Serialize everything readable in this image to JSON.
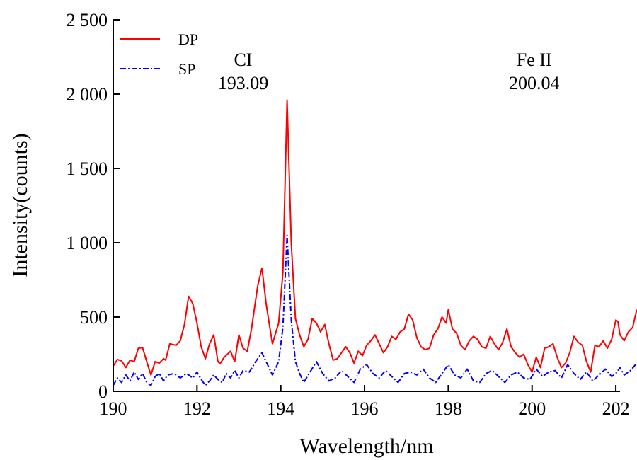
{
  "chart_data": {
    "type": "line",
    "xlabel": "Wavelength/nm",
    "ylabel": "Intensity(counts)",
    "xlim": [
      190,
      202.1
    ],
    "ylim": [
      0,
      2500
    ],
    "xticks": [
      {
        "value": 190,
        "label": "190"
      },
      {
        "value": 192,
        "label": "192"
      },
      {
        "value": 194,
        "label": "194"
      },
      {
        "value": 196,
        "label": "196"
      },
      {
        "value": 198,
        "label": "198"
      },
      {
        "value": 200,
        "label": "200"
      },
      {
        "value": 202,
        "label": "202"
      }
    ],
    "yticks": [
      {
        "value": 0,
        "label": "0"
      },
      {
        "value": 500,
        "label": "500"
      },
      {
        "value": 1000,
        "label": "1 000"
      },
      {
        "value": 1500,
        "label": "1 500"
      },
      {
        "value": 2000,
        "label": "2 000"
      },
      {
        "value": 2500,
        "label": "2 500"
      }
    ],
    "grid": false,
    "legend_position": "top-left",
    "series": [
      {
        "name": "DP",
        "color": "#ff0000",
        "style": "solid",
        "points": [
          [
            190.0,
            170
          ],
          [
            190.1,
            215
          ],
          [
            190.2,
            205
          ],
          [
            190.3,
            160
          ],
          [
            190.4,
            210
          ],
          [
            190.5,
            200
          ],
          [
            190.6,
            290
          ],
          [
            190.7,
            295
          ],
          [
            190.8,
            200
          ],
          [
            190.9,
            110
          ],
          [
            191.0,
            200
          ],
          [
            191.1,
            190
          ],
          [
            191.2,
            220
          ],
          [
            191.25,
            210
          ],
          [
            191.35,
            320
          ],
          [
            191.5,
            310
          ],
          [
            191.6,
            340
          ],
          [
            191.7,
            450
          ],
          [
            191.8,
            640
          ],
          [
            191.9,
            590
          ],
          [
            192.0,
            460
          ],
          [
            192.1,
            300
          ],
          [
            192.2,
            220
          ],
          [
            192.3,
            320
          ],
          [
            192.4,
            380
          ],
          [
            192.5,
            200
          ],
          [
            192.55,
            185
          ],
          [
            192.65,
            230
          ],
          [
            192.8,
            270
          ],
          [
            192.9,
            200
          ],
          [
            193.0,
            380
          ],
          [
            193.1,
            290
          ],
          [
            193.2,
            270
          ],
          [
            193.3,
            420
          ],
          [
            193.45,
            710
          ],
          [
            193.55,
            830
          ],
          [
            193.65,
            590
          ],
          [
            193.8,
            320
          ],
          [
            193.95,
            460
          ],
          [
            194.05,
            800
          ],
          [
            194.15,
            1960
          ],
          [
            194.25,
            1000
          ],
          [
            194.35,
            490
          ],
          [
            194.45,
            380
          ],
          [
            194.55,
            300
          ],
          [
            194.65,
            350
          ],
          [
            194.75,
            490
          ],
          [
            194.85,
            460
          ],
          [
            194.95,
            400
          ],
          [
            195.05,
            450
          ],
          [
            195.15,
            320
          ],
          [
            195.25,
            210
          ],
          [
            195.35,
            220
          ],
          [
            195.45,
            260
          ],
          [
            195.55,
            300
          ],
          [
            195.65,
            260
          ],
          [
            195.75,
            190
          ],
          [
            195.85,
            270
          ],
          [
            195.95,
            240
          ],
          [
            196.05,
            310
          ],
          [
            196.15,
            340
          ],
          [
            196.25,
            380
          ],
          [
            196.35,
            320
          ],
          [
            196.45,
            260
          ],
          [
            196.55,
            300
          ],
          [
            196.65,
            370
          ],
          [
            196.75,
            350
          ],
          [
            196.85,
            400
          ],
          [
            196.95,
            420
          ],
          [
            197.05,
            520
          ],
          [
            197.15,
            480
          ],
          [
            197.25,
            360
          ],
          [
            197.35,
            300
          ],
          [
            197.45,
            280
          ],
          [
            197.55,
            290
          ],
          [
            197.65,
            380
          ],
          [
            197.75,
            420
          ],
          [
            197.85,
            500
          ],
          [
            197.95,
            460
          ],
          [
            198.0,
            550
          ],
          [
            198.1,
            420
          ],
          [
            198.2,
            390
          ],
          [
            198.3,
            310
          ],
          [
            198.4,
            280
          ],
          [
            198.5,
            340
          ],
          [
            198.6,
            370
          ],
          [
            198.7,
            350
          ],
          [
            198.8,
            300
          ],
          [
            198.9,
            290
          ],
          [
            199.0,
            370
          ],
          [
            199.1,
            320
          ],
          [
            199.2,
            280
          ],
          [
            199.3,
            330
          ],
          [
            199.4,
            420
          ],
          [
            199.5,
            300
          ],
          [
            199.6,
            260
          ],
          [
            199.7,
            230
          ],
          [
            199.8,
            250
          ],
          [
            199.9,
            180
          ],
          [
            200.0,
            130
          ],
          [
            200.1,
            230
          ],
          [
            200.2,
            160
          ],
          [
            200.3,
            290
          ],
          [
            200.4,
            300
          ],
          [
            200.5,
            320
          ],
          [
            200.6,
            230
          ],
          [
            200.7,
            160
          ],
          [
            200.8,
            190
          ],
          [
            200.9,
            260
          ],
          [
            201.0,
            370
          ],
          [
            201.1,
            330
          ],
          [
            201.2,
            310
          ],
          [
            201.3,
            200
          ],
          [
            201.4,
            130
          ],
          [
            201.5,
            310
          ],
          [
            201.6,
            300
          ],
          [
            201.7,
            340
          ],
          [
            201.8,
            290
          ],
          [
            201.9,
            350
          ],
          [
            202.0,
            480
          ],
          [
            202.05,
            470
          ],
          [
            202.1,
            380
          ],
          [
            202.2,
            340
          ],
          [
            202.3,
            400
          ],
          [
            202.4,
            430
          ],
          [
            202.5,
            550
          ]
        ]
      },
      {
        "name": "SP",
        "color": "#0000ff",
        "style": "dashdot",
        "points": [
          [
            190.0,
            40
          ],
          [
            190.1,
            90
          ],
          [
            190.2,
            60
          ],
          [
            190.3,
            110
          ],
          [
            190.4,
            70
          ],
          [
            190.5,
            130
          ],
          [
            190.6,
            80
          ],
          [
            190.7,
            120
          ],
          [
            190.8,
            60
          ],
          [
            190.9,
            40
          ],
          [
            191.0,
            100
          ],
          [
            191.1,
            120
          ],
          [
            191.2,
            70
          ],
          [
            191.3,
            110
          ],
          [
            191.45,
            120
          ],
          [
            191.6,
            90
          ],
          [
            191.75,
            120
          ],
          [
            191.9,
            90
          ],
          [
            192.0,
            130
          ],
          [
            192.1,
            80
          ],
          [
            192.2,
            40
          ],
          [
            192.3,
            70
          ],
          [
            192.4,
            110
          ],
          [
            192.5,
            80
          ],
          [
            192.6,
            60
          ],
          [
            192.7,
            120
          ],
          [
            192.8,
            90
          ],
          [
            192.9,
            140
          ],
          [
            193.0,
            90
          ],
          [
            193.1,
            140
          ],
          [
            193.25,
            130
          ],
          [
            193.4,
            200
          ],
          [
            193.55,
            260
          ],
          [
            193.65,
            200
          ],
          [
            193.8,
            110
          ],
          [
            193.95,
            200
          ],
          [
            194.05,
            430
          ],
          [
            194.15,
            1050
          ],
          [
            194.25,
            480
          ],
          [
            194.35,
            200
          ],
          [
            194.45,
            120
          ],
          [
            194.55,
            60
          ],
          [
            194.7,
            130
          ],
          [
            194.85,
            200
          ],
          [
            195.0,
            120
          ],
          [
            195.15,
            70
          ],
          [
            195.3,
            90
          ],
          [
            195.45,
            140
          ],
          [
            195.6,
            100
          ],
          [
            195.75,
            60
          ],
          [
            195.9,
            150
          ],
          [
            196.05,
            180
          ],
          [
            196.2,
            120
          ],
          [
            196.35,
            90
          ],
          [
            196.5,
            140
          ],
          [
            196.65,
            100
          ],
          [
            196.8,
            60
          ],
          [
            196.95,
            120
          ],
          [
            197.1,
            130
          ],
          [
            197.25,
            110
          ],
          [
            197.4,
            150
          ],
          [
            197.55,
            90
          ],
          [
            197.7,
            60
          ],
          [
            197.85,
            120
          ],
          [
            198.0,
            180
          ],
          [
            198.15,
            110
          ],
          [
            198.3,
            90
          ],
          [
            198.45,
            150
          ],
          [
            198.6,
            70
          ],
          [
            198.75,
            60
          ],
          [
            198.9,
            120
          ],
          [
            199.05,
            140
          ],
          [
            199.2,
            100
          ],
          [
            199.35,
            60
          ],
          [
            199.5,
            110
          ],
          [
            199.65,
            130
          ],
          [
            199.8,
            90
          ],
          [
            199.95,
            80
          ],
          [
            200.1,
            150
          ],
          [
            200.25,
            100
          ],
          [
            200.4,
            130
          ],
          [
            200.55,
            140
          ],
          [
            200.7,
            90
          ],
          [
            200.85,
            180
          ],
          [
            201.0,
            120
          ],
          [
            201.15,
            80
          ],
          [
            201.3,
            130
          ],
          [
            201.45,
            70
          ],
          [
            201.6,
            110
          ],
          [
            201.75,
            150
          ],
          [
            201.9,
            100
          ],
          [
            202.0,
            120
          ],
          [
            202.1,
            160
          ],
          [
            202.2,
            110
          ],
          [
            202.35,
            140
          ],
          [
            202.5,
            190
          ]
        ]
      }
    ],
    "annotations": [
      {
        "lines": [
          "CI",
          "193.09"
        ],
        "x": 193.1,
        "y": 2000
      },
      {
        "lines": [
          "Fe II",
          "200.04"
        ],
        "x": 200.05,
        "y": 2000
      }
    ]
  }
}
